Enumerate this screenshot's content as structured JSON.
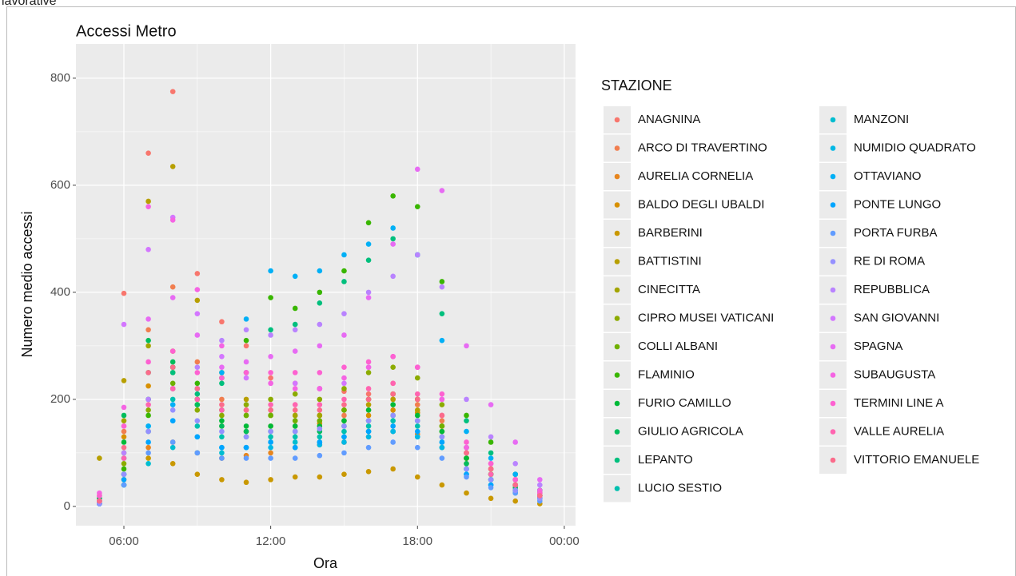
{
  "page_caption": "lavorative",
  "chart_data": {
    "type": "scatter",
    "title": "Accessi Metro",
    "x_label": "Ora",
    "y_label": "Numero medio accessi",
    "legend_title": "STAZIONE",
    "legend_position": "right",
    "grid": true,
    "background": "#EBEBEB",
    "xlim": [
      4.04,
      24.46
    ],
    "ylim": [
      -36,
      864
    ],
    "xticks": [
      {
        "value": 6,
        "label": "06:00"
      },
      {
        "value": 12,
        "label": "12:00"
      },
      {
        "value": 18,
        "label": "18:00"
      },
      {
        "value": 24,
        "label": "00:00"
      }
    ],
    "yticks": [
      0,
      200,
      400,
      600,
      800
    ],
    "x": [
      5,
      6,
      7,
      8,
      9,
      10,
      11,
      12,
      13,
      14,
      15,
      16,
      17,
      18,
      19,
      20,
      21,
      22,
      23
    ],
    "series": [
      {
        "name": "ANAGNINA",
        "color": "#F8766D",
        "values": [
          15,
          398,
          660,
          775,
          435,
          345,
          300,
          240,
          230,
          220,
          215,
          210,
          230,
          200,
          150,
          110,
          80,
          50,
          30
        ]
      },
      {
        "name": "ARCO DI TRAVERTINO",
        "color": "#F17E4F",
        "values": [
          10,
          140,
          330,
          410,
          270,
          200,
          180,
          170,
          160,
          160,
          170,
          180,
          200,
          190,
          160,
          100,
          70,
          50,
          30
        ]
      },
      {
        "name": "AURELIA CORNELIA",
        "color": "#E7851E",
        "values": [
          8,
          60,
          110,
          120,
          100,
          90,
          95,
          100,
          110,
          115,
          120,
          130,
          140,
          135,
          110,
          80,
          50,
          40,
          20
        ]
      },
      {
        "name": "BALDO DEGLI UBALDI",
        "color": "#D89000",
        "values": [
          5,
          130,
          225,
          290,
          200,
          150,
          140,
          150,
          150,
          155,
          160,
          170,
          180,
          175,
          150,
          90,
          60,
          40,
          20
        ]
      },
      {
        "name": "BARBERINI",
        "color": "#C99800",
        "values": [
          5,
          50,
          90,
          80,
          60,
          50,
          45,
          50,
          55,
          55,
          60,
          65,
          70,
          55,
          40,
          25,
          15,
          10,
          5
        ]
      },
      {
        "name": "BATTISTINI",
        "color": "#B79F00",
        "values": [
          90,
          235,
          570,
          635,
          385,
          250,
          200,
          180,
          170,
          170,
          180,
          190,
          200,
          180,
          140,
          90,
          60,
          40,
          20
        ]
      },
      {
        "name": "CINECITTA",
        "color": "#A3A500",
        "values": [
          20,
          160,
          300,
          250,
          200,
          180,
          170,
          170,
          170,
          170,
          180,
          200,
          210,
          200,
          150,
          90,
          60,
          40,
          20
        ]
      },
      {
        "name": "CIPRO MUSEI VATICANI",
        "color": "#8CAB00",
        "values": [
          10,
          80,
          180,
          220,
          180,
          170,
          190,
          200,
          210,
          200,
          220,
          250,
          260,
          240,
          190,
          110,
          70,
          50,
          25
        ]
      },
      {
        "name": "COLLI ALBANI",
        "color": "#6FB000",
        "values": [
          10,
          100,
          200,
          230,
          200,
          180,
          170,
          170,
          160,
          160,
          180,
          200,
          210,
          200,
          150,
          100,
          60,
          40,
          20
        ]
      },
      {
        "name": "FLAMINIO",
        "color": "#39B600",
        "values": [
          5,
          70,
          170,
          260,
          230,
          240,
          310,
          390,
          370,
          400,
          440,
          530,
          580,
          560,
          420,
          170,
          120,
          60,
          30
        ]
      },
      {
        "name": "FURIO CAMILLO",
        "color": "#00BA38",
        "values": [
          10,
          120,
          250,
          260,
          190,
          160,
          150,
          150,
          150,
          150,
          160,
          180,
          190,
          170,
          140,
          90,
          60,
          40,
          20
        ]
      },
      {
        "name": "GIULIO AGRICOLA",
        "color": "#00BD5C",
        "values": [
          15,
          170,
          310,
          270,
          190,
          150,
          140,
          140,
          140,
          140,
          150,
          160,
          170,
          160,
          130,
          80,
          50,
          35,
          20
        ]
      },
      {
        "name": "LEPANTO",
        "color": "#00BF7D",
        "values": [
          5,
          40,
          140,
          250,
          210,
          230,
          250,
          330,
          340,
          380,
          420,
          460,
          500,
          470,
          360,
          160,
          100,
          60,
          30
        ]
      },
      {
        "name": "LUCIO SESTIO",
        "color": "#00C0AF",
        "values": [
          5,
          90,
          200,
          200,
          150,
          130,
          130,
          130,
          130,
          130,
          140,
          150,
          160,
          150,
          120,
          70,
          50,
          30,
          15
        ]
      },
      {
        "name": "MANZONI",
        "color": "#00BDD0",
        "values": [
          5,
          40,
          80,
          110,
          100,
          100,
          110,
          120,
          120,
          120,
          130,
          140,
          140,
          130,
          110,
          70,
          50,
          30,
          15
        ]
      },
      {
        "name": "NUMIDIO QUADRATO",
        "color": "#00B8E5",
        "values": [
          5,
          60,
          150,
          160,
          130,
          110,
          110,
          110,
          110,
          115,
          120,
          130,
          140,
          130,
          110,
          60,
          40,
          25,
          15
        ]
      },
      {
        "name": "OTTAVIANO",
        "color": "#00B0F6",
        "values": [
          5,
          60,
          150,
          190,
          220,
          250,
          350,
          440,
          430,
          440,
          470,
          490,
          520,
          470,
          310,
          140,
          90,
          60,
          30
        ]
      },
      {
        "name": "PONTE LUNGO",
        "color": "#00A5FF",
        "values": [
          5,
          50,
          120,
          160,
          130,
          110,
          110,
          120,
          110,
          120,
          130,
          140,
          150,
          140,
          120,
          60,
          40,
          30,
          15
        ]
      },
      {
        "name": "PORTA FURBA",
        "color": "#619CFF",
        "values": [
          5,
          40,
          100,
          120,
          100,
          90,
          90,
          90,
          90,
          95,
          100,
          110,
          120,
          110,
          90,
          55,
          35,
          25,
          10
        ]
      },
      {
        "name": "RE DI ROMA",
        "color": "#9590FF",
        "values": [
          5,
          60,
          140,
          180,
          160,
          140,
          130,
          140,
          140,
          145,
          150,
          160,
          170,
          160,
          130,
          70,
          50,
          30,
          15
        ]
      },
      {
        "name": "REPUBBLICA",
        "color": "#B983FF",
        "values": [
          10,
          100,
          200,
          220,
          260,
          310,
          330,
          320,
          330,
          340,
          360,
          400,
          430,
          470,
          410,
          200,
          130,
          80,
          40
        ]
      },
      {
        "name": "SAN GIOVANNI",
        "color": "#D376FF",
        "values": [
          20,
          340,
          480,
          540,
          360,
          280,
          240,
          230,
          230,
          220,
          230,
          260,
          280,
          260,
          200,
          110,
          80,
          50,
          25
        ]
      },
      {
        "name": "SPAGNA",
        "color": "#E76BF3",
        "values": [
          10,
          150,
          350,
          390,
          320,
          260,
          270,
          280,
          290,
          300,
          320,
          390,
          490,
          630,
          590,
          300,
          190,
          120,
          50
        ]
      },
      {
        "name": "SUBAUGUSTA",
        "color": "#F564E3",
        "values": [
          25,
          185,
          560,
          535,
          405,
          300,
          250,
          230,
          220,
          220,
          240,
          260,
          280,
          260,
          200,
          110,
          80,
          50,
          30
        ]
      },
      {
        "name": "TERMINI LINE A",
        "color": "#FD61D1",
        "values": [
          20,
          150,
          270,
          290,
          250,
          240,
          250,
          250,
          250,
          250,
          260,
          270,
          280,
          260,
          210,
          120,
          80,
          50,
          25
        ]
      },
      {
        "name": "VALLE AURELIA",
        "color": "#FF64B0",
        "values": [
          10,
          90,
          190,
          220,
          200,
          180,
          180,
          190,
          190,
          190,
          200,
          220,
          230,
          210,
          170,
          100,
          60,
          40,
          20
        ]
      },
      {
        "name": "VITTORIO EMANUELE",
        "color": "#FB6B8B",
        "values": [
          10,
          110,
          250,
          260,
          220,
          190,
          180,
          180,
          180,
          180,
          190,
          200,
          210,
          200,
          170,
          100,
          70,
          40,
          20
        ]
      }
    ]
  }
}
